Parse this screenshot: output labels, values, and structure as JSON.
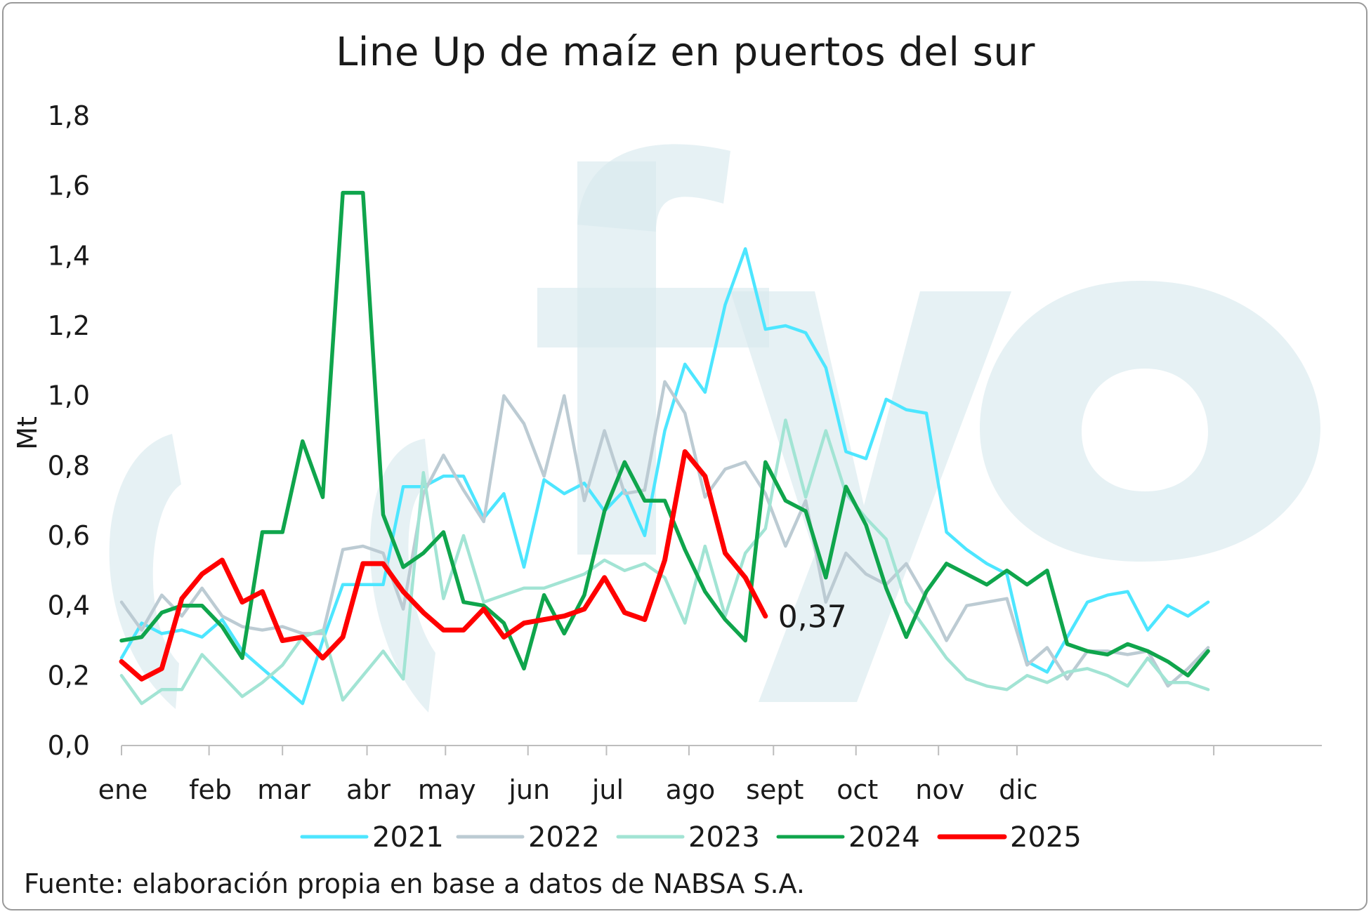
{
  "chart_data": {
    "type": "line",
    "title": "Line Up de maíz en puertos del sur",
    "ylabel": "Mt",
    "xlabel": "",
    "ylim": [
      0,
      1.8
    ],
    "yticks": [
      "0,0",
      "0,2",
      "0,4",
      "0,6",
      "0,8",
      "1,0",
      "1,2",
      "1,4",
      "1,6",
      "1,8"
    ],
    "months": [
      "ene",
      "feb",
      "mar",
      "abr",
      "may",
      "jun",
      "jul",
      "ago",
      "sept",
      "oct",
      "nov",
      "dic"
    ],
    "grid": false,
    "legend_position": "bottom",
    "last_value_label": "0,37",
    "note": "Fuente: elaboración propia en base a datos de NABSA S.A.",
    "series": [
      {
        "name": "2021",
        "color": "#4de6ff",
        "values": [
          0.25,
          0.35,
          0.32,
          0.33,
          0.31,
          0.36,
          0.27,
          0.22,
          0.17,
          0.12,
          0.3,
          0.46,
          0.46,
          0.46,
          0.74,
          0.74,
          0.77,
          0.77,
          0.65,
          0.72,
          0.51,
          0.76,
          0.72,
          0.75,
          0.67,
          0.73,
          0.6,
          0.9,
          1.09,
          1.01,
          1.26,
          1.42,
          1.19,
          1.2,
          1.18,
          1.08,
          0.84,
          0.82,
          0.99,
          0.96,
          0.95,
          0.61,
          0.56,
          0.52,
          0.49,
          0.24,
          0.21,
          0.31,
          0.41,
          0.43,
          0.44,
          0.33,
          0.4,
          0.37,
          0.41
        ]
      },
      {
        "name": "2022",
        "color": "#bccbd3",
        "values": [
          0.41,
          0.33,
          0.43,
          0.37,
          0.45,
          0.37,
          0.34,
          0.33,
          0.34,
          0.32,
          0.32,
          0.56,
          0.57,
          0.55,
          0.39,
          0.72,
          0.83,
          0.73,
          0.64,
          1.0,
          0.92,
          0.77,
          1.0,
          0.7,
          0.9,
          0.72,
          0.73,
          1.04,
          0.95,
          0.71,
          0.79,
          0.81,
          0.72,
          0.57,
          0.7,
          0.41,
          0.55,
          0.49,
          0.46,
          0.52,
          0.42,
          0.3,
          0.4,
          0.41,
          0.42,
          0.23,
          0.28,
          0.19,
          0.27,
          0.27,
          0.26,
          0.27,
          0.17,
          0.22,
          0.28
        ]
      },
      {
        "name": "2023",
        "color": "#a2e4d4",
        "values": [
          0.2,
          0.12,
          0.16,
          0.16,
          0.26,
          0.2,
          0.14,
          0.18,
          0.23,
          0.31,
          0.33,
          0.13,
          0.2,
          0.27,
          0.19,
          0.78,
          0.42,
          0.6,
          0.41,
          0.43,
          0.45,
          0.45,
          0.47,
          0.49,
          0.53,
          0.5,
          0.52,
          0.48,
          0.35,
          0.57,
          0.37,
          0.55,
          0.62,
          0.93,
          0.71,
          0.9,
          0.72,
          0.65,
          0.59,
          0.41,
          0.33,
          0.25,
          0.19,
          0.17,
          0.16,
          0.2,
          0.18,
          0.21,
          0.22,
          0.2,
          0.17,
          0.25,
          0.18,
          0.18,
          0.16
        ]
      },
      {
        "name": "2024",
        "color": "#0fa54c",
        "values": [
          0.3,
          0.31,
          0.38,
          0.4,
          0.4,
          0.34,
          0.25,
          0.61,
          0.61,
          0.87,
          0.71,
          1.58,
          1.58,
          0.66,
          0.51,
          0.55,
          0.61,
          0.41,
          0.4,
          0.35,
          0.22,
          0.43,
          0.32,
          0.43,
          0.67,
          0.81,
          0.7,
          0.7,
          0.56,
          0.44,
          0.36,
          0.3,
          0.81,
          0.7,
          0.67,
          0.48,
          0.74,
          0.63,
          0.45,
          0.31,
          0.44,
          0.52,
          0.49,
          0.46,
          0.5,
          0.46,
          0.5,
          0.29,
          0.27,
          0.26,
          0.29,
          0.27,
          0.24,
          0.2,
          0.27
        ]
      },
      {
        "name": "2025",
        "color": "#ff0000",
        "values": [
          0.24,
          0.19,
          0.22,
          0.42,
          0.49,
          0.53,
          0.41,
          0.44,
          0.3,
          0.31,
          0.25,
          0.31,
          0.52,
          0.52,
          0.44,
          0.38,
          0.33,
          0.33,
          0.39,
          0.31,
          0.35,
          0.36,
          0.37,
          0.39,
          0.48,
          0.38,
          0.36,
          0.53,
          0.84,
          0.77,
          0.55,
          0.48,
          0.37
        ]
      }
    ]
  }
}
